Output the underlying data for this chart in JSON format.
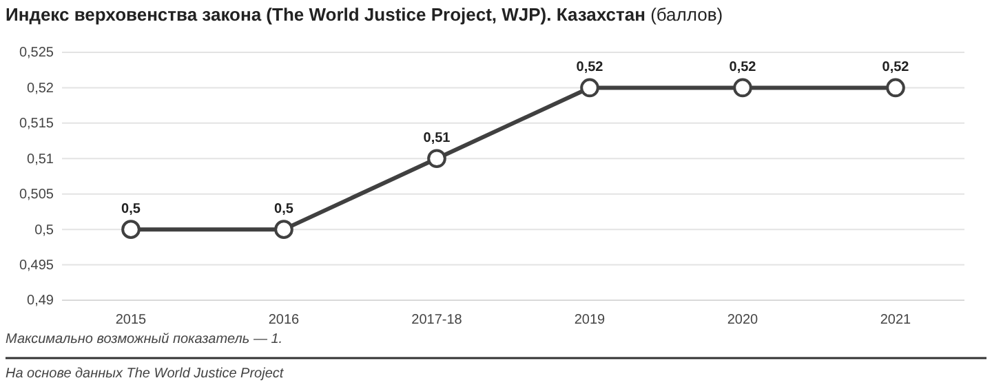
{
  "chart_data": {
    "type": "line",
    "title": "Индекс верховенства закона (The World Justice Project, WJP). Казахстан",
    "subtitle": "(баллов)",
    "categories": [
      "2015",
      "2016",
      "2017-18",
      "2019",
      "2020",
      "2021"
    ],
    "series": [
      {
        "color": "#404040",
        "values": [
          0.5,
          0.5,
          0.51,
          0.52,
          0.52,
          0.52
        ],
        "value_labels": [
          "0,5",
          "0,5",
          "0,51",
          "0,52",
          "0,52",
          "0,52"
        ]
      }
    ],
    "ylim": [
      0.49,
      0.525
    ],
    "yticks": [
      {
        "value": 0.49,
        "label": "0,49"
      },
      {
        "value": 0.495,
        "label": "0,495"
      },
      {
        "value": 0.5,
        "label": "0,5"
      },
      {
        "value": 0.505,
        "label": "0,505"
      },
      {
        "value": 0.51,
        "label": "0,51"
      },
      {
        "value": 0.515,
        "label": "0,515"
      },
      {
        "value": 0.52,
        "label": "0,52"
      },
      {
        "value": 0.525,
        "label": "0,525"
      }
    ],
    "grid": "y",
    "marker": "circle",
    "line_style": "solid",
    "annotations": [
      "Максимально возможный показатель — 1.",
      "На основе данных The World Justice Project"
    ]
  }
}
